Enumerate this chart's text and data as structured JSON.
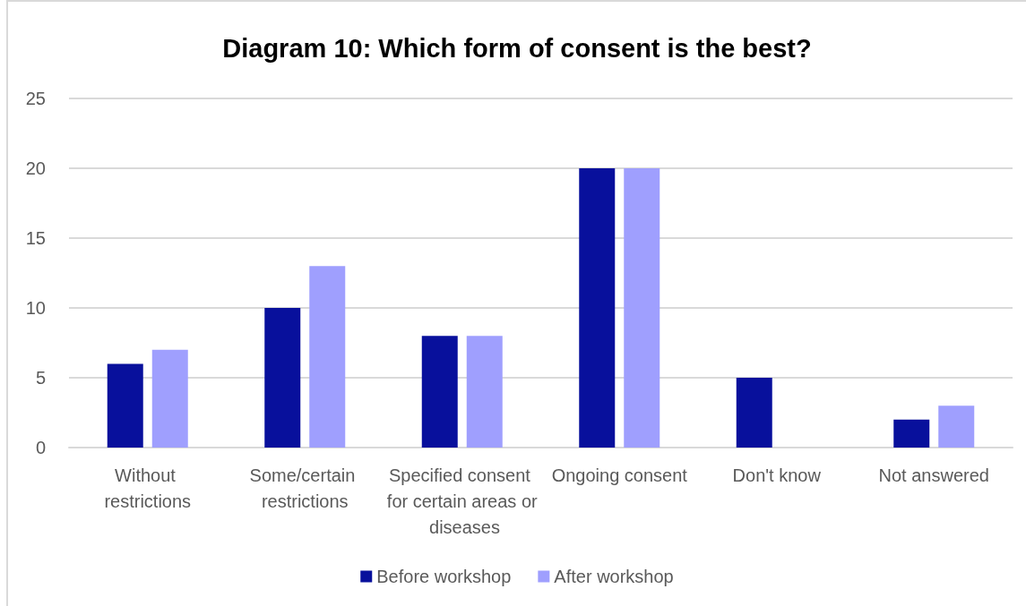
{
  "chart_data": {
    "type": "bar",
    "title": "Diagram 10: Which form of consent is the best?",
    "categories": [
      "Without restrictions",
      "Some/certain restrictions",
      "Specified consent for certain areas or diseases",
      "Ongoing consent",
      "Don't know",
      "Not answered"
    ],
    "series": [
      {
        "name": "Before workshop",
        "color": "#08109c",
        "values": [
          6,
          10,
          8,
          20,
          5,
          2
        ]
      },
      {
        "name": "After workshop",
        "color": "#9f9ffe",
        "values": [
          7,
          13,
          8,
          20,
          0,
          3
        ]
      }
    ],
    "ylim": [
      0,
      25
    ],
    "yticks": [
      0,
      5,
      10,
      15,
      20,
      25
    ],
    "grid": "y",
    "legend": "bottom"
  }
}
